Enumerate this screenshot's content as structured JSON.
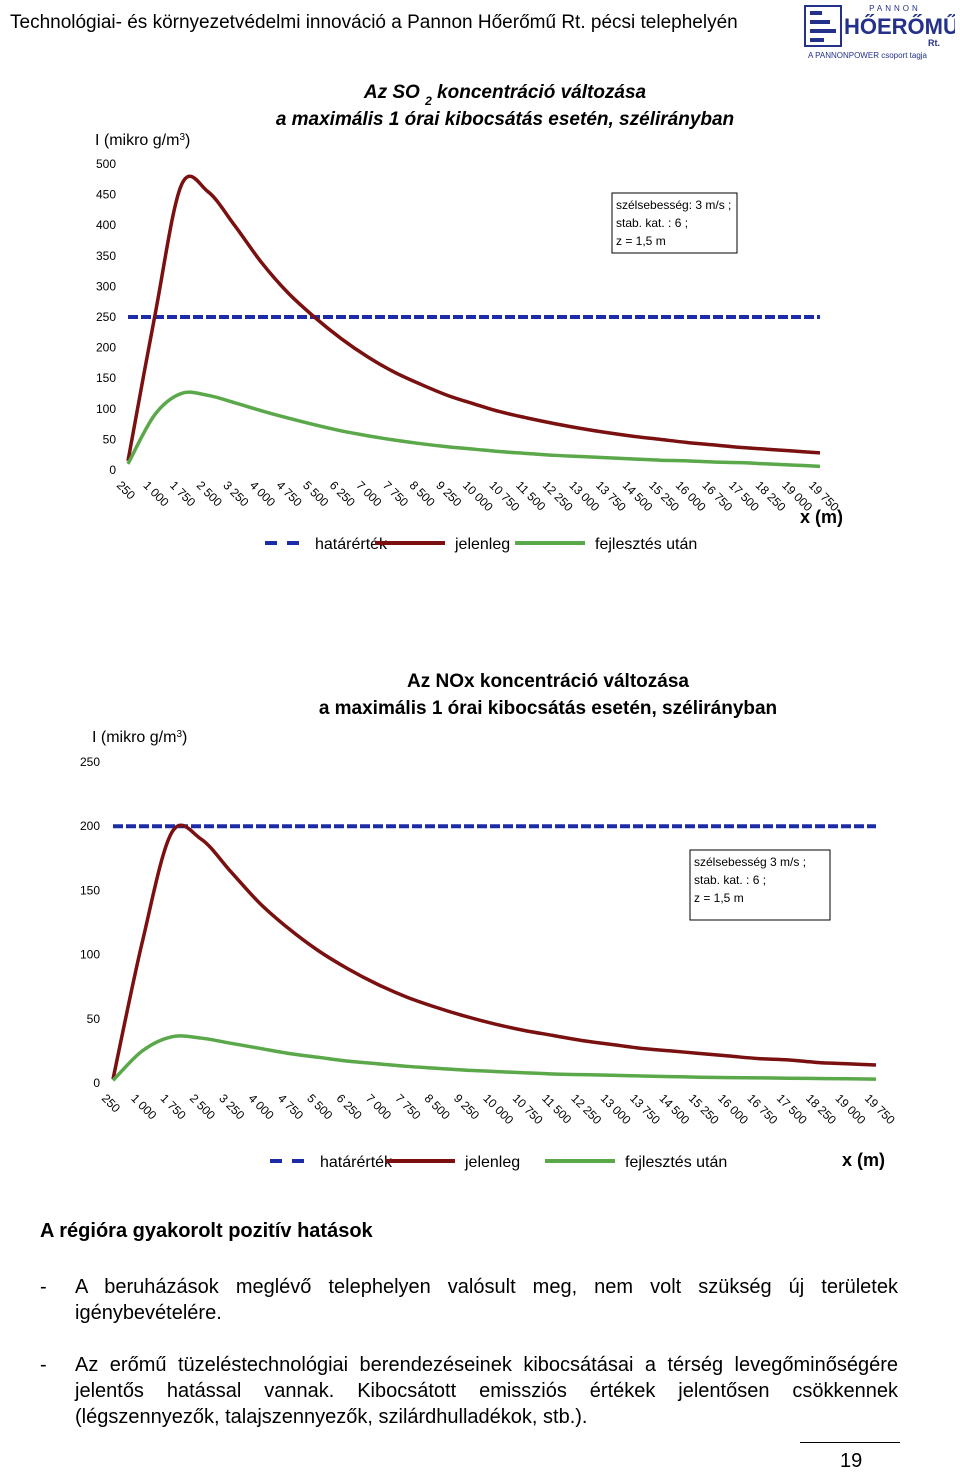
{
  "header": {
    "title": "Technológiai- és környezetvédelmi innováció a Pannon Hőerőmű Rt. pécsi telephelyén",
    "logo_top": "PANNON",
    "logo_main": "HŐERŐMŰ",
    "logo_rt": "Rt.",
    "logo_tagline": "A PANNONPOWER csoport tagja"
  },
  "chart_data": [
    {
      "type": "line",
      "title_parts": [
        "Az SO ",
        "2",
        " koncentráció változása"
      ],
      "subtitle": "a maximális 1 órai kibocsátás esetén, szélirányban",
      "ylabel_parts": [
        "I (mikro g/m",
        "3",
        ")"
      ],
      "xlabel": "x (m)",
      "categories": [
        "250",
        "1 000",
        "1 750",
        "2 500",
        "3 250",
        "4 000",
        "4 750",
        "5 500",
        "6 250",
        "7 000",
        "7 750",
        "8 500",
        "9 250",
        "10 000",
        "10 750",
        "11 500",
        "12 250",
        "13 000",
        "13 750",
        "14 500",
        "15 250",
        "16 000",
        "16 750",
        "17 500",
        "18 250",
        "19 000",
        "19 750"
      ],
      "ylim": [
        0,
        500
      ],
      "yticks": [
        0,
        50,
        100,
        150,
        200,
        250,
        300,
        350,
        400,
        450,
        500
      ],
      "annotation": [
        "szélsebesség: 3 m/s ;",
        "stab. kat. : 6 ;",
        "z = 1,5 m"
      ],
      "series": [
        {
          "name": "határérték",
          "color": "#1c2ca8",
          "dashed": true,
          "values": [
            250,
            250,
            250,
            250,
            250,
            250,
            250,
            250,
            250,
            250,
            250,
            250,
            250,
            250,
            250,
            250,
            250,
            250,
            250,
            250,
            250,
            250,
            250,
            250,
            250,
            250,
            250
          ]
        },
        {
          "name": "jelenleg",
          "color": "#7a1010",
          "values": [
            15,
            250,
            465,
            455,
            400,
            340,
            290,
            250,
            215,
            185,
            160,
            140,
            122,
            108,
            95,
            85,
            76,
            68,
            61,
            55,
            50,
            45,
            41,
            37,
            34,
            31,
            28
          ]
        },
        {
          "name": "fejlesztés után",
          "color": "#5aa84a",
          "values": [
            10,
            90,
            125,
            122,
            110,
            97,
            85,
            74,
            64,
            56,
            49,
            43,
            38,
            34,
            30,
            27,
            24,
            22,
            20,
            18,
            16,
            15,
            13,
            12,
            10,
            8,
            6
          ]
        }
      ]
    },
    {
      "type": "line",
      "title_parts": [
        "Az NOx koncentráció változása"
      ],
      "subtitle": "a maximális 1 órai kibocsátás esetén, szélirányban",
      "ylabel_parts": [
        "I (mikro g/m",
        "3",
        ")"
      ],
      "xlabel": "x (m)",
      "categories": [
        "250",
        "1 000",
        "1 750",
        "2 500",
        "3 250",
        "4 000",
        "4 750",
        "5 500",
        "6 250",
        "7 000",
        "7 750",
        "8 500",
        "9 250",
        "10 000",
        "10 750",
        "11 500",
        "12 250",
        "13 000",
        "13 750",
        "14 500",
        "15 250",
        "16 000",
        "16 750",
        "17 500",
        "18 250",
        "19 000",
        "19 750"
      ],
      "ylim": [
        0,
        250
      ],
      "yticks": [
        0,
        50,
        100,
        150,
        200,
        250
      ],
      "annotation": [
        "szélsebesség 3 m/s ;",
        "stab. kat. : 6 ;",
        "z = 1,5 m"
      ],
      "series": [
        {
          "name": "határérték",
          "color": "#1c2ca8",
          "dashed": true,
          "values": [
            200,
            200,
            200,
            200,
            200,
            200,
            200,
            200,
            200,
            200,
            200,
            200,
            200,
            200,
            200,
            200,
            200,
            200,
            200,
            200,
            200,
            200,
            200,
            200,
            200,
            200,
            200
          ]
        },
        {
          "name": "jelenleg",
          "color": "#7a1010",
          "values": [
            3,
            110,
            195,
            190,
            165,
            140,
            120,
            103,
            89,
            77,
            67,
            59,
            52,
            46,
            41,
            37,
            33,
            30,
            27,
            25,
            23,
            21,
            19,
            18,
            16,
            15,
            14
          ]
        },
        {
          "name": "fejlesztés után",
          "color": "#5aa84a",
          "values": [
            2,
            25,
            36,
            35,
            31,
            27,
            23,
            20,
            17,
            15,
            13,
            11.5,
            10,
            9,
            8,
            7,
            6.5,
            6,
            5.5,
            5,
            4.5,
            4.2,
            4,
            3.7,
            3.5,
            3.3,
            3
          ]
        }
      ]
    }
  ],
  "section": {
    "heading": "A régióra gyakorolt pozitív hatások",
    "bullet_marker": "-",
    "bullets": [
      "A beruházások meglévő telephelyen valósult meg, nem volt szükség új területek igénybevételére.",
      "Az erőmű tüzeléstechnológiai berendezéseinek kibocsátásai a térség levegőminőségére jelentős hatással vannak. Kibocsátott emissziós értékek jelentősen csökkennek (légszennyezők, talajszennyezők, szilárdhulladékok, stb.)."
    ]
  },
  "page_number": "19"
}
